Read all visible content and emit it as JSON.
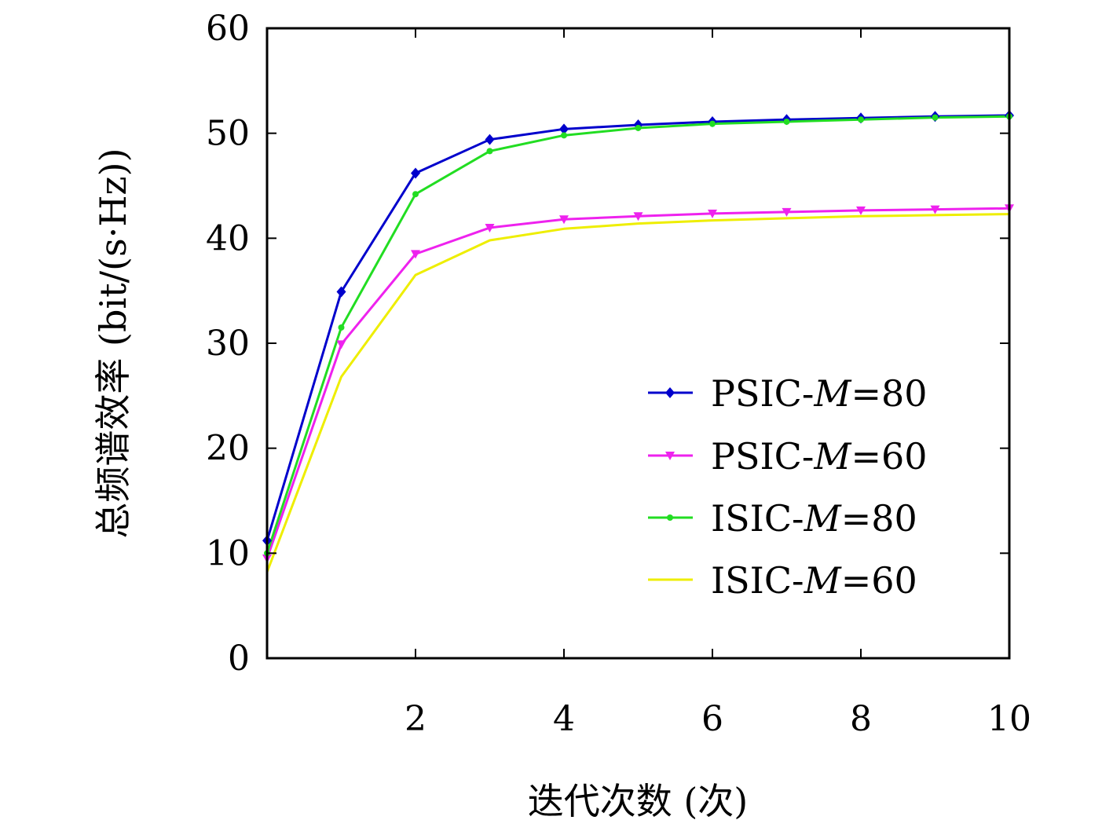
{
  "chart_data": {
    "type": "line",
    "title": "",
    "xlabel": "迭代次数 (次)",
    "ylabel": "总频谱效率 (bit/(s·Hz))",
    "xlim": [
      0,
      10
    ],
    "ylim": [
      0,
      60
    ],
    "xticks": [
      2,
      4,
      6,
      8,
      10
    ],
    "yticks": [
      0,
      10,
      20,
      30,
      40,
      50,
      60
    ],
    "grid": false,
    "legend_position": "bottom-right",
    "x": [
      0,
      1,
      2,
      3,
      4,
      5,
      6,
      7,
      8,
      9,
      10
    ],
    "series": [
      {
        "name": "PSIC-M=80",
        "legend_prefix": "PSIC-",
        "legend_var": "M",
        "legend_suffix": "=80",
        "color": "#0000cc",
        "marker": "diamond",
        "values": [
          11.2,
          34.9,
          46.2,
          49.4,
          50.4,
          50.8,
          51.1,
          51.3,
          51.45,
          51.6,
          51.7
        ]
      },
      {
        "name": "PSIC-M=60",
        "legend_prefix": "PSIC-",
        "legend_var": "M",
        "legend_suffix": "=60",
        "color": "#ee22ee",
        "marker": "triangle-down",
        "values": [
          9.5,
          29.9,
          38.5,
          41.0,
          41.8,
          42.1,
          42.35,
          42.5,
          42.65,
          42.75,
          42.85
        ]
      },
      {
        "name": "ISIC-M=80",
        "legend_prefix": "ISIC-",
        "legend_var": "M",
        "legend_suffix": "=80",
        "color": "#22dd22",
        "marker": "dot",
        "values": [
          10.0,
          31.5,
          44.2,
          48.3,
          49.8,
          50.5,
          50.9,
          51.1,
          51.3,
          51.5,
          51.6
        ]
      },
      {
        "name": "ISIC-M=60",
        "legend_prefix": "ISIC-",
        "legend_var": "M",
        "legend_suffix": "=60",
        "color": "#eeee00",
        "marker": "none",
        "values": [
          8.2,
          26.8,
          36.5,
          39.8,
          40.9,
          41.4,
          41.7,
          41.9,
          42.1,
          42.2,
          42.3
        ]
      }
    ]
  }
}
